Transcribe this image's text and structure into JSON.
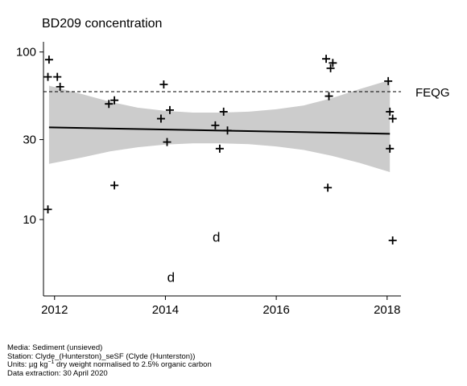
{
  "chart_data": {
    "type": "scatter",
    "title": "BD209 concentration",
    "xlabel": "",
    "ylabel": "",
    "x_axis": {
      "ticks": [
        2012,
        2014,
        2016,
        2018
      ],
      "range": [
        2011.8,
        2018.25
      ]
    },
    "y_axis": {
      "scale": "log",
      "ticks": [
        10,
        30,
        100
      ],
      "range": [
        3.5,
        115
      ]
    },
    "reference_line": {
      "label": "FEQG",
      "value": 58,
      "style": "dashed"
    },
    "trend_line": {
      "x": [
        2011.9,
        2018.05
      ],
      "y": [
        35.5,
        32.5
      ]
    },
    "confidence_band": {
      "x": [
        2011.9,
        2012.5,
        2013.0,
        2013.5,
        2014.0,
        2014.5,
        2015.0,
        2015.5,
        2016.0,
        2016.5,
        2017.0,
        2017.5,
        2018.05
      ],
      "lower": [
        21.5,
        23.5,
        25.5,
        27.0,
        28.0,
        28.5,
        28.5,
        28.2,
        27.3,
        26.0,
        24.0,
        21.8,
        19.2
      ],
      "upper": [
        63.0,
        56.0,
        50.5,
        46.5,
        44.5,
        43.5,
        43.5,
        44.0,
        45.5,
        48.0,
        53.0,
        60.0,
        68.0
      ]
    },
    "series": [
      {
        "marker": "plus",
        "points": [
          {
            "x": 2011.9,
            "y": 90
          },
          {
            "x": 2011.88,
            "y": 71
          },
          {
            "x": 2012.05,
            "y": 71
          },
          {
            "x": 2012.1,
            "y": 62
          },
          {
            "x": 2011.88,
            "y": 11.5
          },
          {
            "x": 2012.98,
            "y": 49
          },
          {
            "x": 2013.08,
            "y": 51.5
          },
          {
            "x": 2013.08,
            "y": 16
          },
          {
            "x": 2013.92,
            "y": 40
          },
          {
            "x": 2013.97,
            "y": 64
          },
          {
            "x": 2014.08,
            "y": 45
          },
          {
            "x": 2014.03,
            "y": 29
          },
          {
            "x": 2014.9,
            "y": 36.5
          },
          {
            "x": 2014.98,
            "y": 26.5
          },
          {
            "x": 2015.05,
            "y": 44
          },
          {
            "x": 2015.12,
            "y": 34
          },
          {
            "x": 2016.9,
            "y": 91
          },
          {
            "x": 2017.02,
            "y": 86
          },
          {
            "x": 2016.98,
            "y": 80
          },
          {
            "x": 2016.95,
            "y": 54.5
          },
          {
            "x": 2016.93,
            "y": 15.5
          },
          {
            "x": 2018.02,
            "y": 67
          },
          {
            "x": 2018.05,
            "y": 44
          },
          {
            "x": 2018.1,
            "y": 40
          },
          {
            "x": 2018.05,
            "y": 26.5
          },
          {
            "x": 2018.1,
            "y": 7.5
          }
        ]
      }
    ],
    "detection_limit_points": [
      {
        "label": "d",
        "x": 2014.92,
        "y": 7.9
      },
      {
        "label": "d",
        "x": 2014.1,
        "y": 4.55
      }
    ]
  },
  "footer": {
    "media": "Media: Sediment (unsieved)",
    "station": "Station: Clyde_(Hunterston)_seSF (Clyde (Hunterston))",
    "units_prefix": "Units:  µg kg",
    "units_sup": "−1",
    "units_suffix": " dry weight normalised to 2.5% organic carbon",
    "extraction": "Data extraction: 30 April 2020"
  },
  "colors": {
    "band": "#cccccc",
    "line": "#000000",
    "background": "#ffffff"
  }
}
